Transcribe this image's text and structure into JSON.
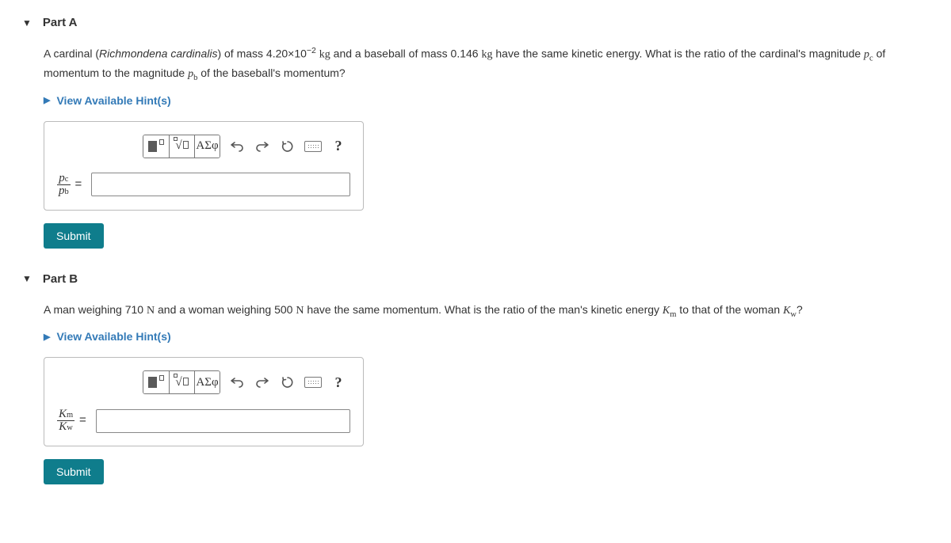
{
  "partA": {
    "title": "Part A",
    "question_html": "A cardinal (<span class='italic'>Richmondena cardinalis</span>) of mass 4.20×10<span class='sup'>−2</span> <span class='kg'>kg</span> and a baseball of mass 0.146 <span class='kg'>kg</span> have the same kinetic energy. What is the ratio of the cardinal's magnitude <span class='mathvar'>p</span><span class='sub'>c</span> of momentum to the magnitude <span class='mathvar'>p</span><span class='sub'>b</span> of the baseball's momentum?",
    "hints_label": "View Available Hint(s)",
    "ratio_num": "p<span class='rsub'>c</span>",
    "ratio_den": "p<span class='rsub'>b</span>",
    "submit": "Submit"
  },
  "partB": {
    "title": "Part B",
    "question_html": "A man weighing 710 <span class='kg'>N</span> and a woman weighing 500 <span class='kg'>N</span> have the same momentum. What is the ratio of the man's kinetic energy <span class='mathvar'>K</span><span class='sub'>m</span> to that of the woman <span class='mathvar'>K</span><span class='sub'>w</span>?",
    "hints_label": "View Available Hint(s)",
    "ratio_num": "K<span class='rsub'>m</span>",
    "ratio_den": "K<span class='rsub'>w</span>",
    "submit": "Submit"
  },
  "toolbar": {
    "greek": "ΑΣφ",
    "help": "?"
  }
}
